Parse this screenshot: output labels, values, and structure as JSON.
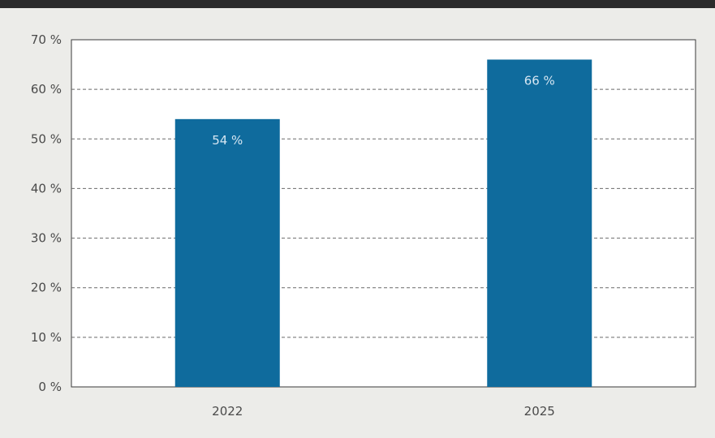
{
  "chart_data": {
    "type": "bar",
    "categories": [
      "2022",
      "2025"
    ],
    "values": [
      54,
      66
    ],
    "data_labels": [
      "54 %",
      "66 %"
    ],
    "ylim": [
      0,
      70
    ],
    "yticks": [
      0,
      10,
      20,
      30,
      40,
      50,
      60,
      70
    ],
    "ytick_labels": [
      "0 %",
      "10 %",
      "20 %",
      "30 %",
      "40 %",
      "50 %",
      "60 %",
      "70 %"
    ],
    "grid": true,
    "legend": "none",
    "bar_color": "#0f6b9d",
    "title": "",
    "xlabel": "",
    "ylabel": ""
  }
}
